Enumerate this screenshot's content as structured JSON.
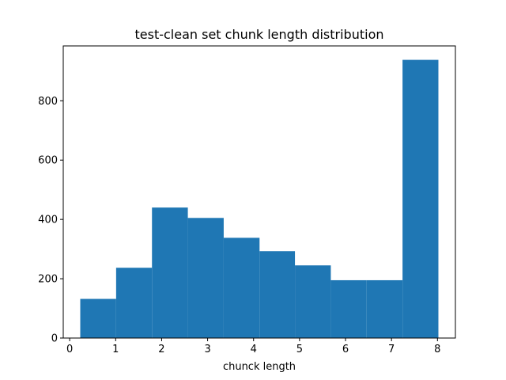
{
  "chart_data": {
    "type": "bar",
    "title": "test-clean set chunk length distribution",
    "xlabel": "chunck length",
    "ylabel": "",
    "xlim": [
      -0.14,
      8.39
    ],
    "ylim": [
      0,
      985
    ],
    "x_ticks": [
      0,
      1,
      2,
      3,
      4,
      5,
      6,
      7,
      8
    ],
    "y_ticks": [
      0,
      200,
      400,
      600,
      800
    ],
    "bins": [
      {
        "start": 0.23,
        "end": 1.01,
        "count": 132
      },
      {
        "start": 1.01,
        "end": 1.79,
        "count": 237
      },
      {
        "start": 1.79,
        "end": 2.57,
        "count": 440
      },
      {
        "start": 2.57,
        "end": 3.35,
        "count": 405
      },
      {
        "start": 3.35,
        "end": 4.13,
        "count": 338
      },
      {
        "start": 4.13,
        "end": 4.9,
        "count": 293
      },
      {
        "start": 4.9,
        "end": 5.68,
        "count": 245
      },
      {
        "start": 5.68,
        "end": 6.46,
        "count": 195
      },
      {
        "start": 6.46,
        "end": 7.24,
        "count": 195
      },
      {
        "start": 7.24,
        "end": 8.02,
        "count": 938
      }
    ],
    "bar_color": "#1f77b4",
    "grid": false,
    "legend": "none"
  }
}
